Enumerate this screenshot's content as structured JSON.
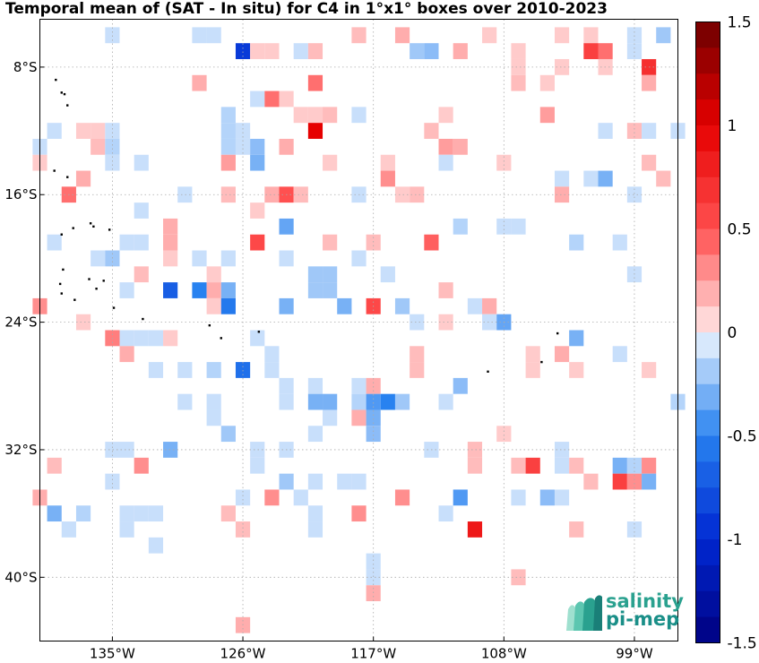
{
  "title": "Temporal mean of (SAT - In situ) for C4 in 1°x1° boxes over 2010-2023",
  "map": {
    "lon_range": [
      -140,
      -96
    ],
    "lat_range": [
      -44,
      -5
    ],
    "lon_ticks": [
      "135°W",
      "126°W",
      "117°W",
      "108°W",
      "99°W"
    ],
    "lon_tick_values": [
      -135,
      -126,
      -117,
      -108,
      -99
    ],
    "lat_ticks": [
      "8°S",
      "16°S",
      "24°S",
      "32°S",
      "40°S"
    ],
    "lat_tick_values": [
      -8,
      -16,
      -24,
      -32,
      -40
    ],
    "grid": "dotted",
    "cells": [
      [
        -135,
        -6,
        -0.1
      ],
      [
        -129,
        -6,
        -0.1
      ],
      [
        -128,
        -6,
        -0.1
      ],
      [
        -118,
        -6,
        0.15
      ],
      [
        -115,
        -6,
        0.2
      ],
      [
        -109,
        -6,
        0.1
      ],
      [
        -104,
        -6,
        0.1
      ],
      [
        -102,
        -6,
        0.1
      ],
      [
        -99,
        -6,
        -0.1
      ],
      [
        -97,
        -6,
        -0.2
      ],
      [
        -126,
        -7,
        -0.9
      ],
      [
        -125,
        -7,
        0.1
      ],
      [
        -124,
        -7,
        0.1
      ],
      [
        -122,
        -7,
        -0.1
      ],
      [
        -121,
        -7,
        0.15
      ],
      [
        -114,
        -7,
        -0.2
      ],
      [
        -113,
        -7,
        -0.25
      ],
      [
        -111,
        -7,
        0.2
      ],
      [
        -107,
        -7,
        0.1
      ],
      [
        -102,
        -7,
        0.6
      ],
      [
        -101,
        -7,
        0.4
      ],
      [
        -99,
        -7,
        -0.1
      ],
      [
        -107,
        -8,
        0.1
      ],
      [
        -104,
        -8,
        0.1
      ],
      [
        -101,
        -8,
        0.1
      ],
      [
        -98,
        -8,
        0.7
      ],
      [
        -129,
        -9,
        0.2
      ],
      [
        -121,
        -9,
        0.4
      ],
      [
        -107,
        -9,
        0.15
      ],
      [
        -105,
        -9,
        0.1
      ],
      [
        -98,
        -9,
        0.2
      ],
      [
        -125,
        -10,
        -0.1
      ],
      [
        -124,
        -10,
        0.4
      ],
      [
        -123,
        -10,
        0.1
      ],
      [
        -127,
        -11,
        -0.15
      ],
      [
        -122,
        -11,
        0.1
      ],
      [
        -121,
        -11,
        0.1
      ],
      [
        -120,
        -11,
        0.15
      ],
      [
        -118,
        -11,
        -0.1
      ],
      [
        -112,
        -11,
        0.1
      ],
      [
        -105,
        -11,
        0.25
      ],
      [
        -139,
        -12,
        -0.1
      ],
      [
        -137,
        -12,
        0.1
      ],
      [
        -136,
        -12,
        0.1
      ],
      [
        -135,
        -12,
        -0.1
      ],
      [
        -127,
        -12,
        -0.15
      ],
      [
        -126,
        -12,
        -0.1
      ],
      [
        -121,
        -12,
        1.0
      ],
      [
        -113,
        -12,
        0.15
      ],
      [
        -101,
        -12,
        -0.1
      ],
      [
        -99,
        -12,
        0.15
      ],
      [
        -98,
        -12,
        -0.1
      ],
      [
        -96,
        -12,
        -0.1
      ],
      [
        -140,
        -13,
        -0.1
      ],
      [
        -136,
        -13,
        0.15
      ],
      [
        -135,
        -13,
        -0.15
      ],
      [
        -127,
        -13,
        -0.15
      ],
      [
        -126,
        -13,
        -0.1
      ],
      [
        -125,
        -13,
        -0.25
      ],
      [
        -123,
        -13,
        0.2
      ],
      [
        -112,
        -13,
        0.25
      ],
      [
        -111,
        -13,
        0.2
      ],
      [
        -140,
        -14,
        0.1
      ],
      [
        -135,
        -14,
        -0.1
      ],
      [
        -133,
        -14,
        -0.1
      ],
      [
        -127,
        -14,
        0.25
      ],
      [
        -125,
        -14,
        -0.3
      ],
      [
        -120,
        -14,
        0.1
      ],
      [
        -116,
        -14,
        0.1
      ],
      [
        -112,
        -14,
        -0.1
      ],
      [
        -108,
        -14,
        0.1
      ],
      [
        -98,
        -14,
        0.15
      ],
      [
        -137,
        -15,
        0.2
      ],
      [
        -116,
        -15,
        0.3
      ],
      [
        -104,
        -15,
        -0.1
      ],
      [
        -102,
        -15,
        -0.1
      ],
      [
        -101,
        -15,
        -0.3
      ],
      [
        -97,
        -15,
        0.15
      ],
      [
        -138,
        -16,
        0.4
      ],
      [
        -130,
        -16,
        -0.1
      ],
      [
        -127,
        -16,
        0.15
      ],
      [
        -124,
        -16,
        0.2
      ],
      [
        -123,
        -16,
        0.5
      ],
      [
        -122,
        -16,
        0.15
      ],
      [
        -118,
        -16,
        -0.1
      ],
      [
        -115,
        -16,
        0.1
      ],
      [
        -114,
        -16,
        0.15
      ],
      [
        -104,
        -16,
        0.2
      ],
      [
        -99,
        -16,
        -0.1
      ],
      [
        -133,
        -17,
        -0.1
      ],
      [
        -125,
        -17,
        0.1
      ],
      [
        -131,
        -18,
        0.2
      ],
      [
        -123,
        -18,
        -0.35
      ],
      [
        -111,
        -18,
        -0.15
      ],
      [
        -108,
        -18,
        -0.1
      ],
      [
        -107,
        -18,
        -0.1
      ],
      [
        -131,
        -19,
        0.2
      ],
      [
        -139,
        -19,
        -0.1
      ],
      [
        -134,
        -19,
        -0.1
      ],
      [
        -133,
        -19,
        -0.1
      ],
      [
        -125,
        -19,
        0.55
      ],
      [
        -120,
        -19,
        0.15
      ],
      [
        -117,
        -19,
        0.15
      ],
      [
        -113,
        -19,
        0.45
      ],
      [
        -103,
        -19,
        -0.15
      ],
      [
        -100,
        -19,
        -0.1
      ],
      [
        -136,
        -20,
        -0.1
      ],
      [
        -135,
        -20,
        -0.2
      ],
      [
        -131,
        -20,
        0.1
      ],
      [
        -129,
        -20,
        -0.1
      ],
      [
        -127,
        -20,
        -0.1
      ],
      [
        -123,
        -20,
        -0.1
      ],
      [
        -118,
        -20,
        -0.1
      ],
      [
        -133,
        -21,
        0.15
      ],
      [
        -128,
        -21,
        0.1
      ],
      [
        -121,
        -21,
        -0.2
      ],
      [
        -120,
        -21,
        -0.2
      ],
      [
        -116,
        -21,
        -0.1
      ],
      [
        -99,
        -21,
        -0.1
      ],
      [
        -134,
        -22,
        -0.1
      ],
      [
        -131,
        -22,
        -0.7
      ],
      [
        -129,
        -22,
        -0.5
      ],
      [
        -128,
        -22,
        0.2
      ],
      [
        -127,
        -22,
        -0.3
      ],
      [
        -121,
        -22,
        -0.2
      ],
      [
        -120,
        -22,
        -0.2
      ],
      [
        -112,
        -22,
        0.15
      ],
      [
        -140,
        -23,
        0.3
      ],
      [
        -128,
        -23,
        0.1
      ],
      [
        -127,
        -23,
        -0.55
      ],
      [
        -123,
        -23,
        -0.3
      ],
      [
        -119,
        -23,
        -0.3
      ],
      [
        -117,
        -23,
        0.55
      ],
      [
        -115,
        -23,
        -0.2
      ],
      [
        -110,
        -23,
        -0.1
      ],
      [
        -109,
        -23,
        0.2
      ],
      [
        -137,
        -24,
        0.1
      ],
      [
        -114,
        -24,
        -0.1
      ],
      [
        -112,
        -24,
        0.1
      ],
      [
        -109,
        -24,
        -0.1
      ],
      [
        -108,
        -24,
        -0.35
      ],
      [
        -135,
        -25,
        0.35
      ],
      [
        -134,
        -25,
        -0.1
      ],
      [
        -133,
        -25,
        -0.1
      ],
      [
        -132,
        -25,
        -0.1
      ],
      [
        -131,
        -25,
        0.1
      ],
      [
        -125,
        -25,
        -0.1
      ],
      [
        -103,
        -25,
        -0.3
      ],
      [
        -134,
        -26,
        0.2
      ],
      [
        -124,
        -26,
        -0.1
      ],
      [
        -114,
        -26,
        0.15
      ],
      [
        -106,
        -26,
        0.1
      ],
      [
        -104,
        -26,
        0.2
      ],
      [
        -100,
        -26,
        -0.1
      ],
      [
        -132,
        -27,
        -0.1
      ],
      [
        -130,
        -27,
        -0.1
      ],
      [
        -128,
        -27,
        -0.15
      ],
      [
        -126,
        -27,
        -0.6
      ],
      [
        -124,
        -27,
        -0.1
      ],
      [
        -114,
        -27,
        0.15
      ],
      [
        -106,
        -27,
        0.1
      ],
      [
        -103,
        -27,
        0.1
      ],
      [
        -98,
        -27,
        0.1
      ],
      [
        -123,
        -28,
        -0.1
      ],
      [
        -121,
        -28,
        -0.1
      ],
      [
        -118,
        -28,
        -0.1
      ],
      [
        -117,
        -28,
        0.2
      ],
      [
        -111,
        -28,
        -0.25
      ],
      [
        -130,
        -29,
        -0.1
      ],
      [
        -128,
        -29,
        -0.1
      ],
      [
        -123,
        -29,
        -0.1
      ],
      [
        -121,
        -29,
        -0.3
      ],
      [
        -120,
        -29,
        -0.3
      ],
      [
        -118,
        -29,
        -0.15
      ],
      [
        -117,
        -29,
        -0.4
      ],
      [
        -116,
        -29,
        -0.5
      ],
      [
        -115,
        -29,
        -0.2
      ],
      [
        -112,
        -29,
        -0.1
      ],
      [
        -96,
        -29,
        -0.15
      ],
      [
        -128,
        -30,
        -0.1
      ],
      [
        -120,
        -30,
        -0.1
      ],
      [
        -118,
        -30,
        0.2
      ],
      [
        -117,
        -30,
        -0.3
      ],
      [
        -127,
        -31,
        -0.2
      ],
      [
        -121,
        -31,
        -0.1
      ],
      [
        -117,
        -31,
        -0.25
      ],
      [
        -108,
        -31,
        0.1
      ],
      [
        -135,
        -32,
        -0.1
      ],
      [
        -134,
        -32,
        -0.1
      ],
      [
        -131,
        -32,
        -0.3
      ],
      [
        -125,
        -32,
        -0.1
      ],
      [
        -123,
        -32,
        -0.1
      ],
      [
        -113,
        -32,
        -0.1
      ],
      [
        -110,
        -32,
        0.15
      ],
      [
        -104,
        -32,
        -0.1
      ],
      [
        -139,
        -33,
        0.15
      ],
      [
        -133,
        -33,
        0.3
      ],
      [
        -125,
        -33,
        -0.1
      ],
      [
        -110,
        -33,
        0.15
      ],
      [
        -107,
        -33,
        0.15
      ],
      [
        -106,
        -33,
        0.6
      ],
      [
        -104,
        -33,
        -0.1
      ],
      [
        -103,
        -33,
        0.15
      ],
      [
        -100,
        -33,
        -0.3
      ],
      [
        -99,
        -33,
        -0.15
      ],
      [
        -98,
        -33,
        0.3
      ],
      [
        -135,
        -34,
        -0.1
      ],
      [
        -123,
        -34,
        -0.2
      ],
      [
        -121,
        -34,
        -0.1
      ],
      [
        -119,
        -34,
        -0.1
      ],
      [
        -118,
        -34,
        -0.1
      ],
      [
        -102,
        -34,
        0.15
      ],
      [
        -100,
        -34,
        0.6
      ],
      [
        -99,
        -34,
        0.3
      ],
      [
        -98,
        -34,
        -0.3
      ],
      [
        -140,
        -35,
        0.2
      ],
      [
        -126,
        -35,
        -0.1
      ],
      [
        -124,
        -35,
        0.3
      ],
      [
        -122,
        -35,
        -0.1
      ],
      [
        -115,
        -35,
        0.3
      ],
      [
        -111,
        -35,
        -0.4
      ],
      [
        -107,
        -35,
        -0.1
      ],
      [
        -105,
        -35,
        -0.25
      ],
      [
        -104,
        -35,
        -0.1
      ],
      [
        -139,
        -36,
        -0.3
      ],
      [
        -137,
        -36,
        -0.15
      ],
      [
        -134,
        -36,
        -0.1
      ],
      [
        -133,
        -36,
        -0.1
      ],
      [
        -132,
        -36,
        -0.1
      ],
      [
        -127,
        -36,
        0.15
      ],
      [
        -121,
        -36,
        -0.1
      ],
      [
        -118,
        -36,
        0.3
      ],
      [
        -112,
        -36,
        -0.1
      ],
      [
        -138,
        -37,
        -0.1
      ],
      [
        -134,
        -37,
        -0.1
      ],
      [
        -126,
        -37,
        0.15
      ],
      [
        -121,
        -37,
        -0.1
      ],
      [
        -110,
        -37,
        0.85
      ],
      [
        -103,
        -37,
        0.15
      ],
      [
        -99,
        -37,
        -0.1
      ],
      [
        -132,
        -38,
        -0.1
      ],
      [
        -117,
        -39,
        -0.1
      ],
      [
        -117,
        -40,
        -0.1
      ],
      [
        -107,
        -40,
        0.15
      ],
      [
        -117,
        -41,
        0.2
      ],
      [
        -126,
        -43,
        0.2
      ]
    ],
    "land_points": [
      [
        -138.9,
        -8.8
      ],
      [
        -138.5,
        -9.6
      ],
      [
        -138.3,
        -9.7
      ],
      [
        -138.1,
        -10.4
      ],
      [
        -139.0,
        -14.5
      ],
      [
        -138.1,
        -14.9
      ],
      [
        -137.7,
        -18.1
      ],
      [
        -136.5,
        -17.8
      ],
      [
        -136.3,
        -18.0
      ],
      [
        -135.2,
        -18.2
      ],
      [
        -138.5,
        -18.5
      ],
      [
        -138.4,
        -20.7
      ],
      [
        -138.6,
        -21.6
      ],
      [
        -136.6,
        -21.3
      ],
      [
        -136.1,
        -21.9
      ],
      [
        -135.6,
        -21.4
      ],
      [
        -138.5,
        -22.2
      ],
      [
        -137.6,
        -22.6
      ],
      [
        -134.9,
        -23.1
      ],
      [
        -132.9,
        -23.8
      ],
      [
        -128.3,
        -24.2
      ],
      [
        -127.5,
        -25.0
      ],
      [
        -124.9,
        -24.6
      ],
      [
        -104.3,
        -24.7
      ],
      [
        -109.1,
        -27.1
      ],
      [
        -105.4,
        -26.5
      ]
    ]
  },
  "colorbar": {
    "ticks": [
      "1.5",
      "1",
      "0.5",
      "0",
      "-0.5",
      "-1",
      "-1.5"
    ],
    "tick_values": [
      1.5,
      1,
      0.5,
      0,
      -0.5,
      -1,
      -1.5
    ],
    "range": [
      -1.5,
      1.5
    ],
    "levels": 24
  },
  "logo": {
    "line1": "salinity",
    "line2": "pi-mep"
  },
  "colors": {
    "grid": "#aaaaaa",
    "land": "#000000",
    "logo": "#2aa18f"
  }
}
